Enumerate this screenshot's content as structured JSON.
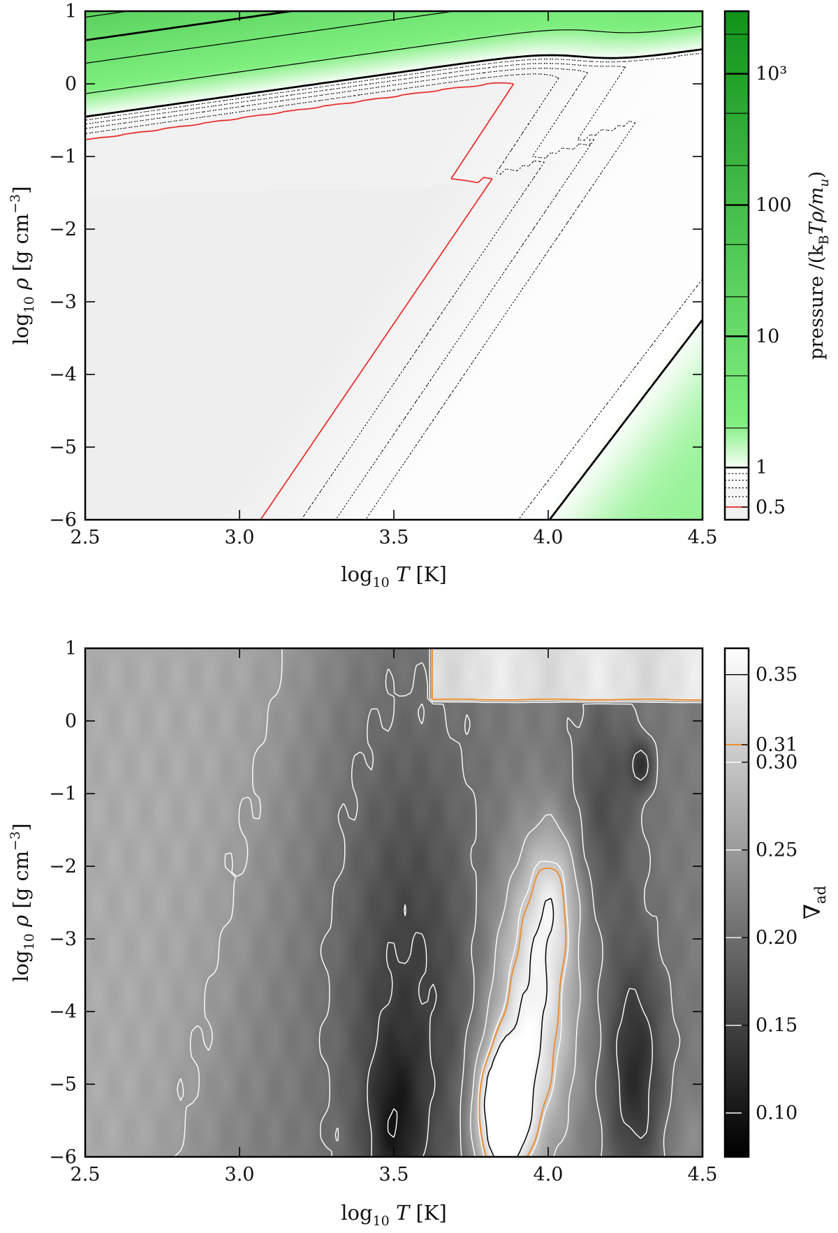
{
  "chart_data": [
    {
      "type": "heatmap",
      "panel": "top",
      "quantity": "pressure",
      "xlabel_parts": {
        "base": "log",
        "sub": "10",
        "var": "T",
        "unit": "[K]"
      },
      "ylabel_parts": {
        "base": "log",
        "sub": "10",
        "var": "ρ",
        "unit": "[g cm",
        "sup": "−3",
        "close": "]"
      },
      "colorbar_label_parts": {
        "pre": "pressure /(k",
        "sub1": "B",
        "mid": "Tρ/m",
        "sub2": "u",
        "close": ")"
      },
      "xlim": [
        2.5,
        4.5
      ],
      "ylim": [
        -6,
        1
      ],
      "x_ticks": [
        "2.5",
        "3.0",
        "3.5",
        "4.0",
        "4.5"
      ],
      "y_ticks": [
        "1",
        "0",
        "−1",
        "−2",
        "−3",
        "−4",
        "−5",
        "−6"
      ],
      "colorbar_scale": "log",
      "colorbar_range": [
        0.4,
        3000
      ],
      "colorbar_ticks": [
        {
          "value": 0.5,
          "label": "0.5"
        },
        {
          "value": 1,
          "label": "1"
        },
        {
          "value": 10,
          "label": "10"
        },
        {
          "value": 100,
          "label": "100"
        },
        {
          "value": 1000,
          "label": "10³"
        }
      ],
      "colormap": [
        "#eeeeee",
        "#ffffff",
        "#7ff07f",
        "#11931a"
      ],
      "contour_levels": [
        0.5,
        0.6,
        0.7,
        0.8,
        0.9,
        1,
        2,
        5,
        10,
        20,
        50,
        100,
        200,
        500,
        1000,
        2000
      ],
      "highlight_contour": {
        "value": 0.5,
        "color": "#e8312f"
      }
    },
    {
      "type": "heatmap",
      "panel": "bottom",
      "quantity": "∇ad",
      "xlabel_parts": {
        "base": "log",
        "sub": "10",
        "var": "T",
        "unit": "[K]"
      },
      "ylabel_parts": {
        "base": "log",
        "sub": "10",
        "var": "ρ",
        "unit": "[g cm",
        "sup": "−3",
        "close": "]"
      },
      "colorbar_label_parts": {
        "sym": "∇",
        "sub": "ad"
      },
      "xlim": [
        2.5,
        4.5
      ],
      "ylim": [
        -6,
        1
      ],
      "x_ticks": [
        "2.5",
        "3.0",
        "3.5",
        "4.0",
        "4.5"
      ],
      "y_ticks": [
        "1",
        "0",
        "−1",
        "−2",
        "−3",
        "−4",
        "−5",
        "−6"
      ],
      "colorbar_range": [
        0.075,
        0.365
      ],
      "colorbar_ticks": [
        {
          "value": 0.1,
          "label": "0.10"
        },
        {
          "value": 0.15,
          "label": "0.15"
        },
        {
          "value": 0.2,
          "label": "0.20"
        },
        {
          "value": 0.25,
          "label": "0.25"
        },
        {
          "value": 0.3,
          "label": "0.30"
        },
        {
          "value": 0.31,
          "label": "0.31"
        },
        {
          "value": 0.35,
          "label": "0.35"
        }
      ],
      "colormap": [
        "#000000",
        "#ffffff"
      ],
      "contour_levels": [
        0.1,
        0.15,
        0.2,
        0.25,
        0.3,
        0.31,
        0.35
      ],
      "highlight_contour": {
        "value": 0.31,
        "color": "#f08a24"
      }
    }
  ]
}
